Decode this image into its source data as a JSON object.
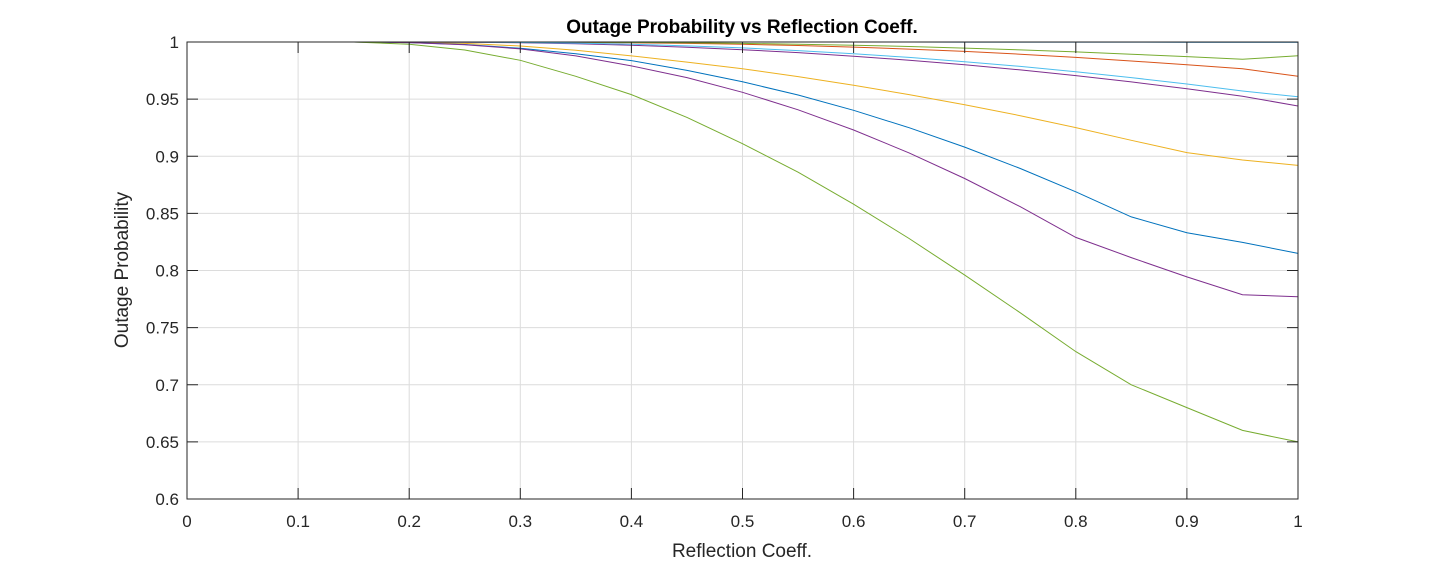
{
  "chart_data": {
    "type": "line",
    "title": "Outage Probability vs Reflection Coeff.",
    "xlabel": "Reflection Coeff.",
    "ylabel": "Outage Probability",
    "xlim": [
      0,
      1
    ],
    "ylim": [
      0.6,
      1
    ],
    "xticks": [
      "0",
      "0.1",
      "0.2",
      "0.3",
      "0.4",
      "0.5",
      "0.6",
      "0.7",
      "0.8",
      "0.9",
      "1"
    ],
    "yticks": [
      "0.6",
      "0.65",
      "0.7",
      "0.75",
      "0.8",
      "0.85",
      "0.9",
      "0.95",
      "1"
    ],
    "grid": true,
    "legend": "none",
    "x": [
      0.05,
      0.1,
      0.15,
      0.2,
      0.25,
      0.3,
      0.35,
      0.4,
      0.45,
      0.5,
      0.55,
      0.6,
      0.65,
      0.7,
      0.75,
      0.8,
      0.85,
      0.9,
      0.95,
      1.0
    ],
    "series": [
      {
        "color": "#0072BD",
        "values": [
          1,
          1,
          1,
          1,
          1,
          1,
          1,
          1,
          1,
          1,
          1,
          1,
          1,
          0.9999,
          0.9999,
          0.9999,
          0.9999,
          0.9998,
          0.9998,
          0.9997
        ]
      },
      {
        "color": "#D95319",
        "values": [
          1,
          1,
          1,
          1,
          0.9999,
          0.9998,
          0.9996,
          0.9993,
          0.9988,
          0.998,
          0.9969,
          0.9955,
          0.9938,
          0.9918,
          0.9893,
          0.9865,
          0.9834,
          0.9801,
          0.9765,
          0.97
        ]
      },
      {
        "color": "#EDB120",
        "values": [
          1,
          1,
          1,
          0.9998,
          0.9988,
          0.9965,
          0.9927,
          0.9878,
          0.9824,
          0.9765,
          0.9697,
          0.9622,
          0.954,
          0.9451,
          0.9355,
          0.9251,
          0.914,
          0.9032,
          0.8967,
          0.892
        ]
      },
      {
        "color": "#7E2F8E",
        "values": [
          1,
          1,
          1,
          1,
          0.9998,
          0.9993,
          0.9984,
          0.9971,
          0.9954,
          0.9933,
          0.9907,
          0.9876,
          0.9841,
          0.9801,
          0.9756,
          0.9706,
          0.9651,
          0.9591,
          0.9526,
          0.944
        ]
      },
      {
        "color": "#77AC30",
        "values": [
          1,
          1,
          1,
          1,
          1,
          0.9999,
          0.9998,
          0.9996,
          0.9993,
          0.9988,
          0.9981,
          0.9972,
          0.9961,
          0.9947,
          0.9931,
          0.9913,
          0.9893,
          0.9872,
          0.9849,
          0.988
        ]
      },
      {
        "color": "#4DBEEE",
        "values": [
          1,
          1,
          1,
          1,
          0.9999,
          0.9996,
          0.999,
          0.998,
          0.9966,
          0.9948,
          0.9925,
          0.9897,
          0.9865,
          0.9828,
          0.9786,
          0.9739,
          0.9688,
          0.9632,
          0.9571,
          0.952
        ]
      },
      {
        "color": "#0072BD",
        "values": [
          1,
          1,
          1,
          0.9995,
          0.9978,
          0.9945,
          0.9898,
          0.9837,
          0.9751,
          0.9652,
          0.9536,
          0.9402,
          0.925,
          0.908,
          0.8893,
          0.8689,
          0.8469,
          0.8331,
          0.8246,
          0.815
        ]
      },
      {
        "color": "#7E2F8E",
        "values": [
          1,
          1,
          1,
          0.9995,
          0.9976,
          0.994,
          0.9878,
          0.9791,
          0.9688,
          0.956,
          0.9407,
          0.923,
          0.9029,
          0.8805,
          0.8558,
          0.829,
          0.8113,
          0.7944,
          0.7788,
          0.777
        ]
      },
      {
        "color": "#77AC30",
        "values": [
          1,
          1,
          1,
          0.998,
          0.993,
          0.984,
          0.97,
          0.954,
          0.934,
          0.911,
          0.886,
          0.858,
          0.828,
          0.796,
          0.763,
          0.729,
          0.7,
          0.68,
          0.66,
          0.65
        ]
      }
    ]
  }
}
